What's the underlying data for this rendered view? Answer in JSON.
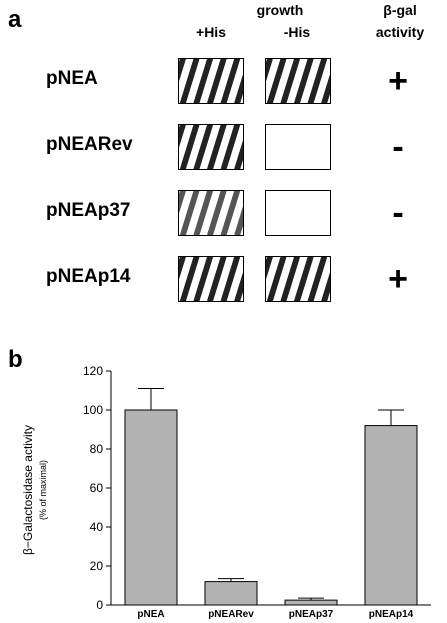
{
  "panel_a": {
    "letter": "a",
    "header_growth": "growth",
    "header_plus_his": "+His",
    "header_minus_his": "-His",
    "header_bgal_line1": "β-gal",
    "header_bgal_line2": "activity",
    "rows": [
      {
        "label": "pNEA",
        "plus_his": "growth",
        "minus_his": "growth",
        "activity": "+"
      },
      {
        "label": "pNEARev",
        "plus_his": "growth",
        "minus_his": "none",
        "activity": "-"
      },
      {
        "label": "pNEAp37",
        "plus_his": "growth",
        "minus_his": "none",
        "activity": "-"
      },
      {
        "label": "pNEAp14",
        "plus_his": "growth",
        "minus_his": "growth",
        "activity": "+"
      }
    ]
  },
  "panel_b": {
    "letter": "b"
  },
  "chart_data": {
    "type": "bar",
    "categories": [
      "pNEA",
      "pNEARev",
      "pNEAp37",
      "pNEAp14"
    ],
    "values": [
      100,
      12,
      2.5,
      92
    ],
    "errors": [
      11,
      1.5,
      1,
      8
    ],
    "ylabel": "β−Galactosidase activity",
    "ylabel_sub": "(% of maximal)",
    "ylim": [
      0,
      120
    ],
    "yticks": [
      0,
      20,
      40,
      60,
      80,
      100,
      120
    ],
    "bar_color": "#b3b3b3",
    "grid": false
  }
}
